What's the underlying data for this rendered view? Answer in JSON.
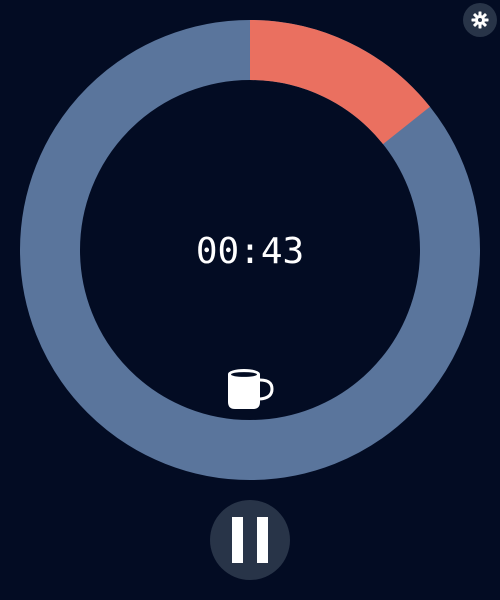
{
  "timer": {
    "display": "00:43",
    "elapsed_fraction": 0.143,
    "mode_icon": "coffee-cup-icon"
  },
  "controls": {
    "play_pause_icon": "pause-icon",
    "settings_icon": "gear-icon"
  },
  "colors": {
    "background": "#030c23",
    "ring_track": "#5a759c",
    "ring_progress": "#ea7060",
    "button_bg": "#283448",
    "text": "#ffffff"
  }
}
